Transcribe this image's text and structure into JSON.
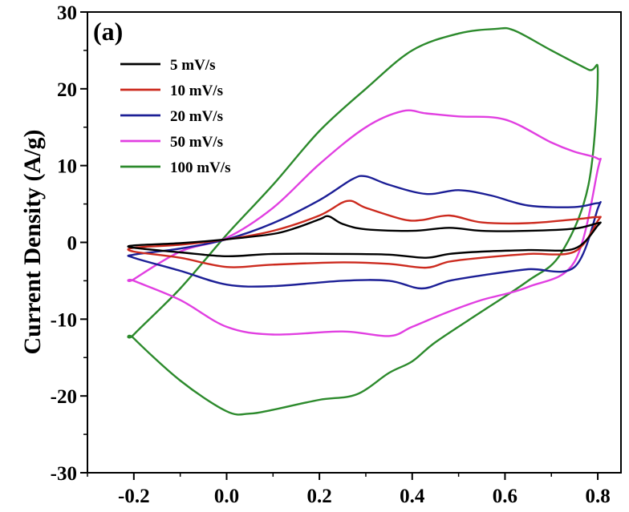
{
  "chart_data": {
    "type": "line",
    "panel_label": "(a)",
    "ylabel": "Current Density (A/g)",
    "xlabel": "",
    "xlim": [
      -0.3,
      0.85
    ],
    "ylim": [
      -30,
      30
    ],
    "xticks": [
      -0.2,
      0.0,
      0.2,
      0.4,
      0.6,
      0.8
    ],
    "xtick_labels": [
      "-0.2",
      "0.0",
      "0.2",
      "0.4",
      "0.6",
      "0.8"
    ],
    "yticks": [
      -30,
      -20,
      -10,
      0,
      10,
      20,
      30
    ],
    "ytick_labels": [
      "-30",
      "-20",
      "-10",
      "0",
      "10",
      "20",
      "30"
    ],
    "grid": false,
    "legend_position": "top-left",
    "series": [
      {
        "name": "5 mV/s",
        "color": "#000000",
        "x": [
          -0.2,
          -0.1,
          0.0,
          0.1,
          0.15,
          0.2,
          0.22,
          0.25,
          0.3,
          0.4,
          0.48,
          0.55,
          0.65,
          0.75,
          0.8,
          0.8,
          0.75,
          0.65,
          0.55,
          0.48,
          0.43,
          0.35,
          0.25,
          0.1,
          0.0,
          -0.1,
          -0.2
        ],
        "y": [
          -0.4,
          -0.1,
          0.4,
          1.1,
          1.9,
          3.0,
          3.4,
          2.4,
          1.7,
          1.5,
          1.9,
          1.5,
          1.5,
          1.8,
          2.5,
          2.2,
          -0.8,
          -1.0,
          -1.2,
          -1.5,
          -2.0,
          -1.6,
          -1.5,
          -1.5,
          -1.8,
          -1.3,
          -0.7
        ]
      },
      {
        "name": "10 mV/s",
        "color": "#cc2a1e",
        "x": [
          -0.2,
          -0.1,
          0.0,
          0.1,
          0.2,
          0.26,
          0.3,
          0.38,
          0.42,
          0.48,
          0.55,
          0.65,
          0.75,
          0.8,
          0.8,
          0.75,
          0.65,
          0.55,
          0.48,
          0.43,
          0.35,
          0.25,
          0.1,
          0.0,
          -0.1,
          -0.2
        ],
        "y": [
          -0.7,
          -0.3,
          0.4,
          1.5,
          3.5,
          5.4,
          4.5,
          3.0,
          2.9,
          3.5,
          2.6,
          2.5,
          3.0,
          3.3,
          2.8,
          -1.2,
          -1.5,
          -2.0,
          -2.5,
          -3.3,
          -2.8,
          -2.6,
          -2.9,
          -3.2,
          -2.0,
          -1.2
        ]
      },
      {
        "name": "20 mV/s",
        "color": "#1c1f96",
        "x": [
          -0.2,
          -0.1,
          0.0,
          0.1,
          0.2,
          0.27,
          0.3,
          0.35,
          0.43,
          0.5,
          0.57,
          0.65,
          0.75,
          0.8,
          0.8,
          0.75,
          0.65,
          0.55,
          0.48,
          0.42,
          0.35,
          0.25,
          0.1,
          0.0,
          -0.1,
          -0.2
        ],
        "y": [
          -1.6,
          -0.8,
          0.4,
          2.5,
          5.5,
          8.2,
          8.6,
          7.5,
          6.3,
          6.8,
          6.1,
          4.8,
          4.6,
          5.1,
          4.4,
          -3.2,
          -3.5,
          -4.3,
          -5.0,
          -6.0,
          -5.0,
          -5.0,
          -5.7,
          -5.5,
          -3.7,
          -2.0
        ]
      },
      {
        "name": "50 mV/s",
        "color": "#e13fe1",
        "x": [
          -0.2,
          -0.1,
          0.0,
          0.1,
          0.2,
          0.3,
          0.38,
          0.43,
          0.5,
          0.6,
          0.7,
          0.75,
          0.8,
          0.8,
          0.75,
          0.65,
          0.55,
          0.48,
          0.4,
          0.35,
          0.25,
          0.1,
          0.0,
          -0.1,
          -0.2
        ],
        "y": [
          -4.8,
          -1.2,
          0.6,
          4.5,
          10.2,
          15.0,
          17.1,
          16.8,
          16.4,
          16.0,
          13.0,
          11.8,
          10.9,
          9.5,
          -2.5,
          -5.8,
          -7.5,
          -9.0,
          -11.0,
          -12.2,
          -11.6,
          -12.0,
          -11.0,
          -7.5,
          -5.0
        ]
      },
      {
        "name": "100 mV/s",
        "color": "#2c8a2c",
        "x": [
          -0.2,
          -0.1,
          0.0,
          0.1,
          0.2,
          0.3,
          0.4,
          0.5,
          0.58,
          0.62,
          0.7,
          0.78,
          0.8,
          0.78,
          0.72,
          0.65,
          0.55,
          0.45,
          0.4,
          0.35,
          0.28,
          0.2,
          0.1,
          0.05,
          0.0,
          -0.1,
          -0.2
        ],
        "y": [
          -12.0,
          -6.0,
          1.0,
          7.5,
          14.5,
          20.0,
          25.0,
          27.2,
          27.8,
          27.6,
          25.0,
          22.5,
          22.0,
          7.5,
          -1.5,
          -5.0,
          -9.0,
          -13.0,
          -15.5,
          -17.0,
          -19.8,
          -20.5,
          -21.8,
          -22.3,
          -22.0,
          -18.0,
          -12.5
        ]
      }
    ]
  }
}
